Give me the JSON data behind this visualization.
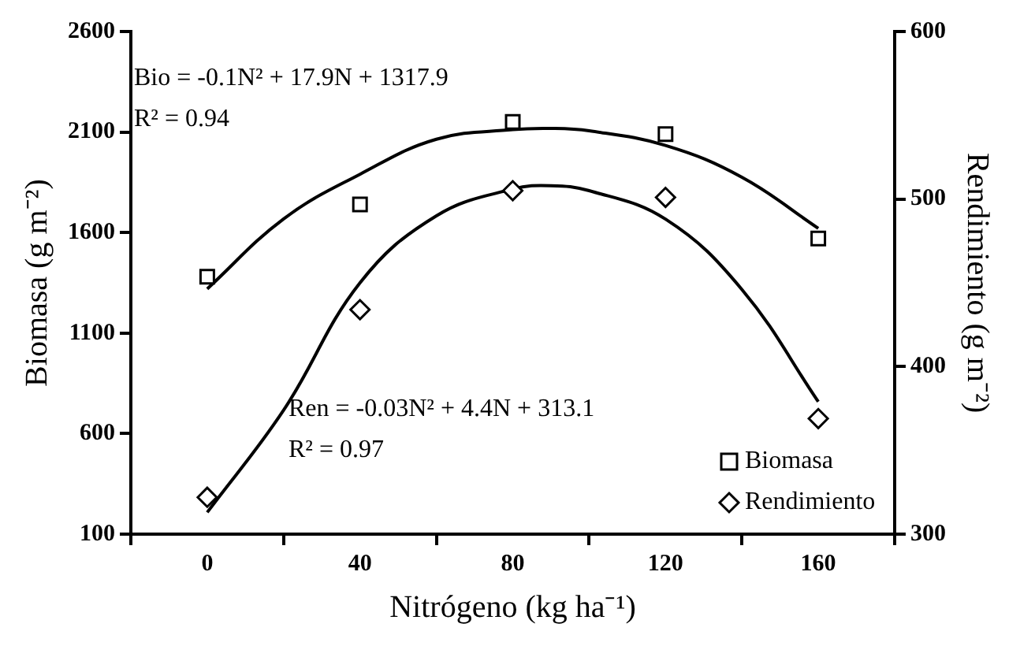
{
  "chart_data": {
    "type": "scatter",
    "xlabel": "Nitrógeno (kg ha⁻¹)",
    "ylabel": "Biomasa (g m⁻²)",
    "y2label": "Rendimiento (g m⁻²)",
    "x": [
      0,
      40,
      80,
      120,
      160
    ],
    "series": [
      {
        "name": "Biomasa",
        "marker": "square",
        "color": "#000000",
        "values": [
          1380,
          1740,
          2150,
          2090,
          1570
        ]
      },
      {
        "name": "Rendimiento",
        "marker": "diamond",
        "axis": "y2",
        "color": "#000000",
        "values": [
          322,
          434,
          505,
          501,
          369
        ]
      },
      {
        "type": "line",
        "marker": "none",
        "color": "#000000",
        "x": [
          0,
          20,
          40,
          60,
          80,
          90,
          100,
          120,
          140,
          160
        ],
        "values": [
          1320,
          1668,
          1890,
          2064,
          2112,
          2118,
          2106,
          2033,
          1875,
          1621
        ]
      },
      {
        "type": "line",
        "marker": "none",
        "axis": "y2",
        "color": "#000000",
        "x": [
          0,
          20,
          40,
          60,
          80,
          90,
          100,
          120,
          140,
          160
        ],
        "values": [
          313,
          374,
          450,
          490,
          506,
          508,
          505,
          488,
          446,
          379
        ]
      }
    ],
    "xlim": [
      -20,
      180
    ],
    "xticks": [
      {
        "value": -20,
        "label": null
      },
      0,
      {
        "value": 20,
        "label": null
      },
      40,
      {
        "value": 60,
        "label": null
      },
      80,
      {
        "value": 100,
        "label": null
      },
      120,
      {
        "value": 140,
        "label": null
      },
      160,
      {
        "value": 180,
        "label": null
      }
    ],
    "ylim": [
      100,
      2600
    ],
    "yticks": [
      100,
      600,
      1100,
      1600,
      2100,
      2600
    ],
    "y2lim": [
      300,
      600
    ],
    "y2ticks": [
      300,
      400,
      500,
      600
    ],
    "annotations": [
      "Bio = -0.1N² + 17.9N + 1317.9",
      "R² = 0.94",
      "Ren = -0.03N² + 4.4N + 313.1",
      "R² = 0.97"
    ],
    "legend": "bottom right",
    "grid": false
  }
}
